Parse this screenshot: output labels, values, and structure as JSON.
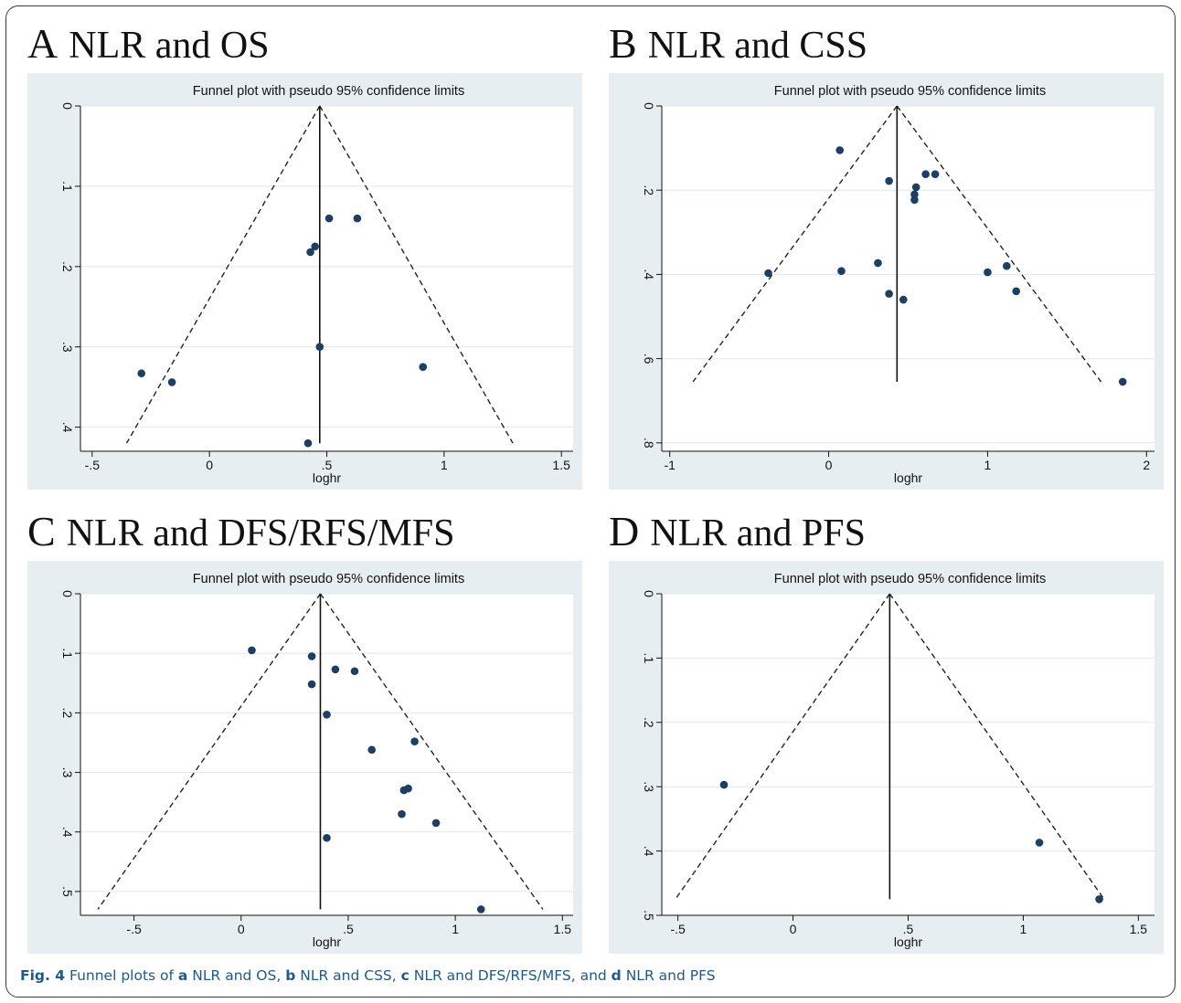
{
  "panels": [
    {
      "letter": "A",
      "heading": "NLR and OS",
      "chart_data": {
        "type": "scatter",
        "subtype": "funnel",
        "title": "Funnel plot with pseudo 95% confidence limits",
        "xlabel": "loghr",
        "ylabel": "",
        "xlim": [
          -0.55,
          1.55
        ],
        "ylim": [
          0,
          0.43
        ],
        "y_inverted": true,
        "xticks": [
          -0.5,
          0,
          0.5,
          1,
          1.5
        ],
        "xtick_labels": [
          "-.5",
          "0",
          ".5",
          "1",
          "1.5"
        ],
        "yticks": [
          0,
          0.1,
          0.2,
          0.3,
          0.4
        ],
        "ytick_labels": [
          "0",
          ".1",
          ".2",
          ".3",
          ".4"
        ],
        "grid": true,
        "pooled_estimate": 0.47,
        "funnel_ymax": 0.42,
        "points": [
          {
            "x": -0.29,
            "y": 0.333
          },
          {
            "x": -0.16,
            "y": 0.344
          },
          {
            "x": 0.42,
            "y": 0.42
          },
          {
            "x": 0.43,
            "y": 0.182
          },
          {
            "x": 0.45,
            "y": 0.175
          },
          {
            "x": 0.47,
            "y": 0.3
          },
          {
            "x": 0.51,
            "y": 0.14
          },
          {
            "x": 0.63,
            "y": 0.14
          },
          {
            "x": 0.91,
            "y": 0.325
          }
        ]
      }
    },
    {
      "letter": "B",
      "heading": "NLR and CSS",
      "chart_data": {
        "type": "scatter",
        "subtype": "funnel",
        "title": "Funnel plot with pseudo 95% confidence limits",
        "xlabel": "loghr",
        "ylabel": "",
        "xlim": [
          -1.05,
          2.05
        ],
        "ylim": [
          0,
          0.82
        ],
        "y_inverted": true,
        "xticks": [
          -1,
          0,
          1,
          2
        ],
        "xtick_labels": [
          "-1",
          "0",
          "1",
          "2"
        ],
        "yticks": [
          0,
          0.2,
          0.4,
          0.6,
          0.8
        ],
        "ytick_labels": [
          "0",
          ".2",
          ".4",
          ".6",
          ".8"
        ],
        "grid": true,
        "pooled_estimate": 0.43,
        "funnel_ymax": 0.655,
        "points": [
          {
            "x": -0.38,
            "y": 0.397
          },
          {
            "x": 0.07,
            "y": 0.105
          },
          {
            "x": 0.08,
            "y": 0.392
          },
          {
            "x": 0.31,
            "y": 0.373
          },
          {
            "x": 0.38,
            "y": 0.178
          },
          {
            "x": 0.38,
            "y": 0.446
          },
          {
            "x": 0.47,
            "y": 0.46
          },
          {
            "x": 0.54,
            "y": 0.223
          },
          {
            "x": 0.54,
            "y": 0.21
          },
          {
            "x": 0.55,
            "y": 0.193
          },
          {
            "x": 0.61,
            "y": 0.162
          },
          {
            "x": 0.67,
            "y": 0.162
          },
          {
            "x": 1.0,
            "y": 0.395
          },
          {
            "x": 1.12,
            "y": 0.38
          },
          {
            "x": 1.18,
            "y": 0.44
          },
          {
            "x": 1.85,
            "y": 0.655
          }
        ]
      }
    },
    {
      "letter": "C",
      "heading": "NLR and DFS/RFS/MFS",
      "chart_data": {
        "type": "scatter",
        "subtype": "funnel",
        "title": "Funnel plot with pseudo 95% confidence limits",
        "xlabel": "loghr",
        "ylabel": "",
        "xlim": [
          -0.75,
          1.55
        ],
        "ylim": [
          0,
          0.54
        ],
        "y_inverted": true,
        "xticks": [
          -0.5,
          0,
          0.5,
          1,
          1.5
        ],
        "xtick_labels": [
          "-.5",
          "0",
          ".5",
          "1",
          "1.5"
        ],
        "yticks": [
          0,
          0.1,
          0.2,
          0.3,
          0.4,
          0.5
        ],
        "ytick_labels": [
          "0",
          ".1",
          ".2",
          ".3",
          ".4",
          ".5"
        ],
        "grid": true,
        "pooled_estimate": 0.37,
        "funnel_ymax": 0.53,
        "points": [
          {
            "x": 0.05,
            "y": 0.095
          },
          {
            "x": 0.33,
            "y": 0.105
          },
          {
            "x": 0.33,
            "y": 0.152
          },
          {
            "x": 0.4,
            "y": 0.203
          },
          {
            "x": 0.4,
            "y": 0.41
          },
          {
            "x": 0.44,
            "y": 0.127
          },
          {
            "x": 0.53,
            "y": 0.13
          },
          {
            "x": 0.61,
            "y": 0.262
          },
          {
            "x": 0.75,
            "y": 0.37
          },
          {
            "x": 0.76,
            "y": 0.33
          },
          {
            "x": 0.78,
            "y": 0.327
          },
          {
            "x": 0.81,
            "y": 0.248
          },
          {
            "x": 0.91,
            "y": 0.385
          },
          {
            "x": 1.12,
            "y": 0.53
          }
        ]
      }
    },
    {
      "letter": "D",
      "heading": "NLR and PFS",
      "chart_data": {
        "type": "scatter",
        "subtype": "funnel",
        "title": "Funnel plot with pseudo 95% confidence limits",
        "xlabel": "loghr",
        "ylabel": "",
        "xlim": [
          -0.57,
          1.57
        ],
        "ylim": [
          0,
          0.5
        ],
        "y_inverted": true,
        "xticks": [
          -0.5,
          0,
          0.5,
          1,
          1.5
        ],
        "xtick_labels": [
          "-.5",
          "0",
          ".5",
          "1",
          "1.5"
        ],
        "yticks": [
          0,
          0.1,
          0.2,
          0.3,
          0.4,
          0.5
        ],
        "ytick_labels": [
          "0",
          ".1",
          ".2",
          ".3",
          ".4",
          ".5"
        ],
        "grid": true,
        "pooled_estimate": 0.42,
        "funnel_ymax": 0.475,
        "points": [
          {
            "x": -0.3,
            "y": 0.297
          },
          {
            "x": 1.07,
            "y": 0.387
          },
          {
            "x": 1.33,
            "y": 0.475
          }
        ]
      }
    }
  ],
  "caption": {
    "label": "Fig. 4",
    "parts": [
      {
        "text": " Funnel plots of ",
        "bold": false
      },
      {
        "text": "a",
        "bold": true
      },
      {
        "text": " NLR and OS, ",
        "bold": false
      },
      {
        "text": "b",
        "bold": true
      },
      {
        "text": " NLR and CSS, ",
        "bold": false
      },
      {
        "text": "c",
        "bold": true
      },
      {
        "text": " NLR and DFS/RFS/MFS, and ",
        "bold": false
      },
      {
        "text": "d",
        "bold": true
      },
      {
        "text": " NLR and PFS",
        "bold": false
      }
    ]
  }
}
